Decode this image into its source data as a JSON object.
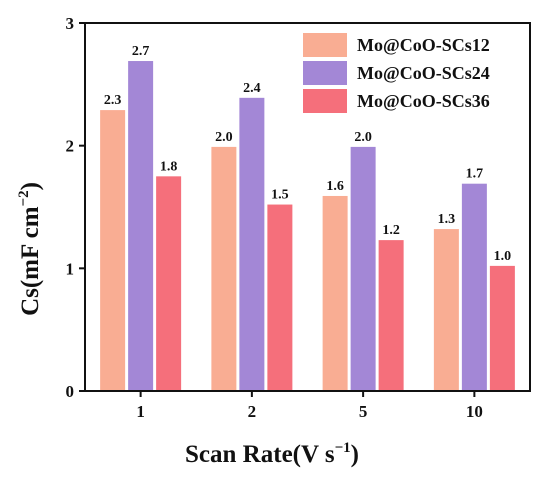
{
  "chart_data": {
    "type": "bar",
    "categories": [
      "1",
      "2",
      "5",
      "10"
    ],
    "series": [
      {
        "name": "Mo@CoO-SCs12",
        "color": "#f9ad93",
        "values": [
          2.3,
          2.0,
          1.6,
          1.3
        ]
      },
      {
        "name": "Mo@CoO-SCs24",
        "color": "#a387d6",
        "values": [
          2.7,
          2.4,
          2.0,
          1.7
        ]
      },
      {
        "name": "Mo@CoO-SCs36",
        "color": "#f56f7b",
        "values": [
          1.8,
          1.5,
          1.2,
          1.0
        ]
      }
    ],
    "data_labels": [
      [
        "2.3",
        "2.0",
        "1.6",
        "1.3"
      ],
      [
        "2.7",
        "2.4",
        "2.0",
        "1.7"
      ],
      [
        "1.8",
        "1.5",
        "1.2",
        "1.0"
      ]
    ],
    "bar_values": [
      [
        2.29,
        1.99,
        1.59,
        1.32
      ],
      [
        2.69,
        2.39,
        1.99,
        1.69
      ],
      [
        1.75,
        1.52,
        1.23,
        1.02
      ]
    ],
    "ylim": [
      0,
      3
    ],
    "yticks": [
      "0",
      "1",
      "2",
      "3"
    ],
    "xlabel": {
      "main": "Scan Rate(V s",
      "sup": "−1",
      "tail": ")"
    },
    "ylabel": {
      "main": "Cs(mF cm",
      "sup": "−2",
      "tail": ")"
    },
    "legend_position": "top-right",
    "grid": false
  }
}
